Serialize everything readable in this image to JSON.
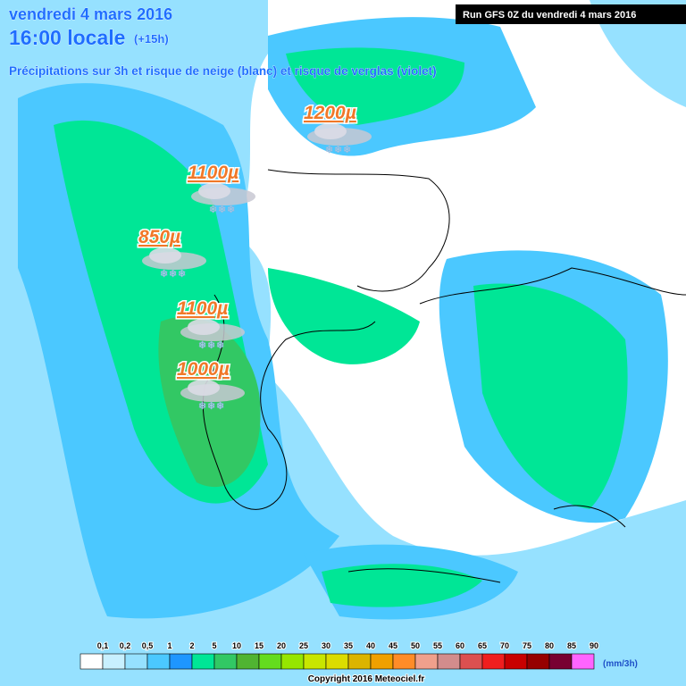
{
  "header": {
    "date": "vendredi 4 mars 2016",
    "time": "16:00 locale",
    "offset": "(+15h)",
    "subtitle": "Précipitations sur 3h et risque de neige (blanc) et risque de verglas (violet)",
    "run": "Run GFS 0Z du vendredi 4 mars 2016"
  },
  "snow_labels": [
    "1200µ",
    "1100µ",
    "850µ",
    "1100µ",
    "1000µ"
  ],
  "legend": {
    "labels": [
      "0,1",
      "0,2",
      "0,5",
      "1",
      "2",
      "5",
      "10",
      "15",
      "20",
      "25",
      "30",
      "35",
      "40",
      "45",
      "50",
      "55",
      "60",
      "65",
      "70",
      "75",
      "80",
      "85",
      "90"
    ],
    "colors": [
      "#ffffff",
      "#c8f0ff",
      "#96e1ff",
      "#4bc8ff",
      "#1e96ff",
      "#00e696",
      "#32c864",
      "#50b432",
      "#64dc1e",
      "#96e600",
      "#c8e600",
      "#dcdc00",
      "#dcb400",
      "#f0a000",
      "#ff8c28",
      "#f0a08c",
      "#d28c8c",
      "#dc5050",
      "#f01e1e",
      "#c80000",
      "#960000",
      "#780032",
      "#ff64ff"
    ],
    "unit": "(mm/3h)"
  },
  "footer": {
    "copyright": "Copyright 2016 Meteociel.fr"
  }
}
